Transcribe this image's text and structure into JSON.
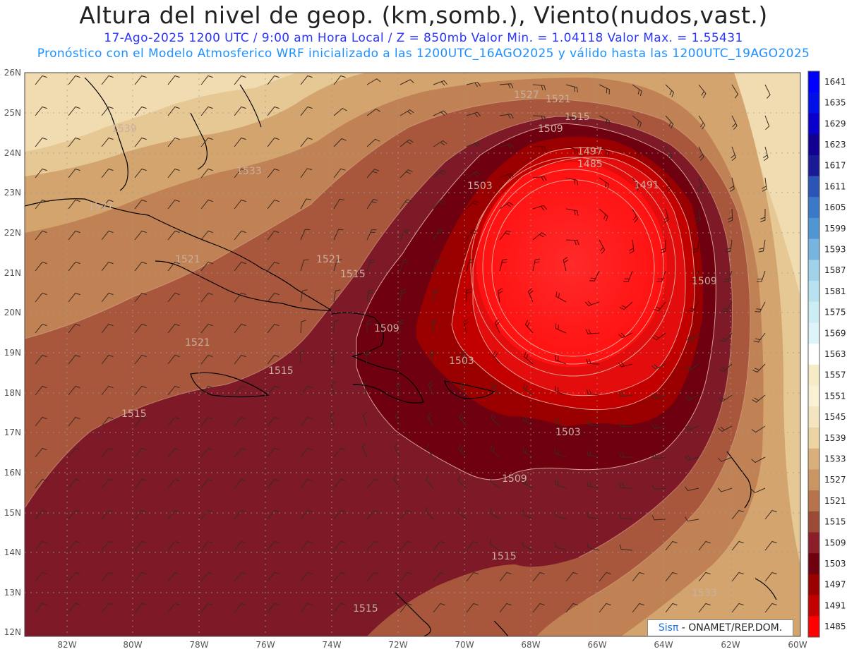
{
  "header": {
    "title": "Altura del nivel de geop. (km,somb.), Viento(nudos,vast.)",
    "line1": "17-Ago-2025  1200 UTC / 9:00 am Hora Local / Z = 850mb     Valor Min. = 1.04118  Valor Max. = 1.55431",
    "line2": "Pronóstico con el Modelo Atmosferico WRF inicializado a las 1200UTC_16AGO2025 y válido hasta las  1200UTC_19AGO2025"
  },
  "map": {
    "lat_ticks": [
      "26N",
      "25N",
      "24N",
      "23N",
      "22N",
      "21N",
      "20N",
      "19N",
      "18N",
      "17N",
      "16N",
      "15N",
      "14N",
      "13N",
      "12N"
    ],
    "lon_ticks": [
      "82W",
      "80W",
      "78W",
      "76W",
      "74W",
      "72W",
      "70W",
      "68W",
      "66W",
      "64W",
      "62W",
      "60W"
    ],
    "contour_labels": [
      "1527",
      "1521",
      "1515",
      "1509",
      "1497",
      "1485",
      "1491",
      "1503",
      "1539",
      "1533",
      "1527",
      "1521",
      "1521",
      "1515",
      "1509",
      "1509",
      "1521",
      "1515",
      "1515",
      "1503",
      "1503",
      "1509",
      "1515",
      "1515",
      "1533"
    ],
    "colors": {
      "center": "#ff1a1a",
      "ring1": "#e30d0d",
      "ring2": "#b00000",
      "ring3": "#6e0010",
      "ring4": "#7e1a28",
      "ring5": "#a8573c",
      "ring6": "#c08254",
      "ring7": "#d4a46e",
      "ring8": "#e6c894",
      "ring9": "#f5e8c4",
      "outside": "#fdf8e6"
    }
  },
  "colorbar": {
    "levels": [
      "1641",
      "1635",
      "1629",
      "1623",
      "1617",
      "1611",
      "1605",
      "1599",
      "1593",
      "1587",
      "1581",
      "1575",
      "1569",
      "1563",
      "1557",
      "1551",
      "1545",
      "1539",
      "1533",
      "1527",
      "1521",
      "1515",
      "1509",
      "1503",
      "1497",
      "1491",
      "1485"
    ],
    "colors": [
      "#0000ff",
      "#0010e6",
      "#0a00cc",
      "#120090",
      "#1a1a96",
      "#2a55b4",
      "#3c78c8",
      "#5096d2",
      "#78b4e0",
      "#a0d2ea",
      "#b8e2f0",
      "#cdedf5",
      "#ddf4f8",
      "#ffffff",
      "#f5ecc6",
      "#f8f1d4",
      "#f3e5c0",
      "#ecd3a2",
      "#d9b07b",
      "#c99663",
      "#b7744c",
      "#9b4a35",
      "#8a1f2a",
      "#6e0010",
      "#9b0000",
      "#c30000",
      "#ff0000"
    ]
  },
  "credit": {
    "brand": "Sisπ",
    "text": " - ONAMET/REP.DOM."
  }
}
